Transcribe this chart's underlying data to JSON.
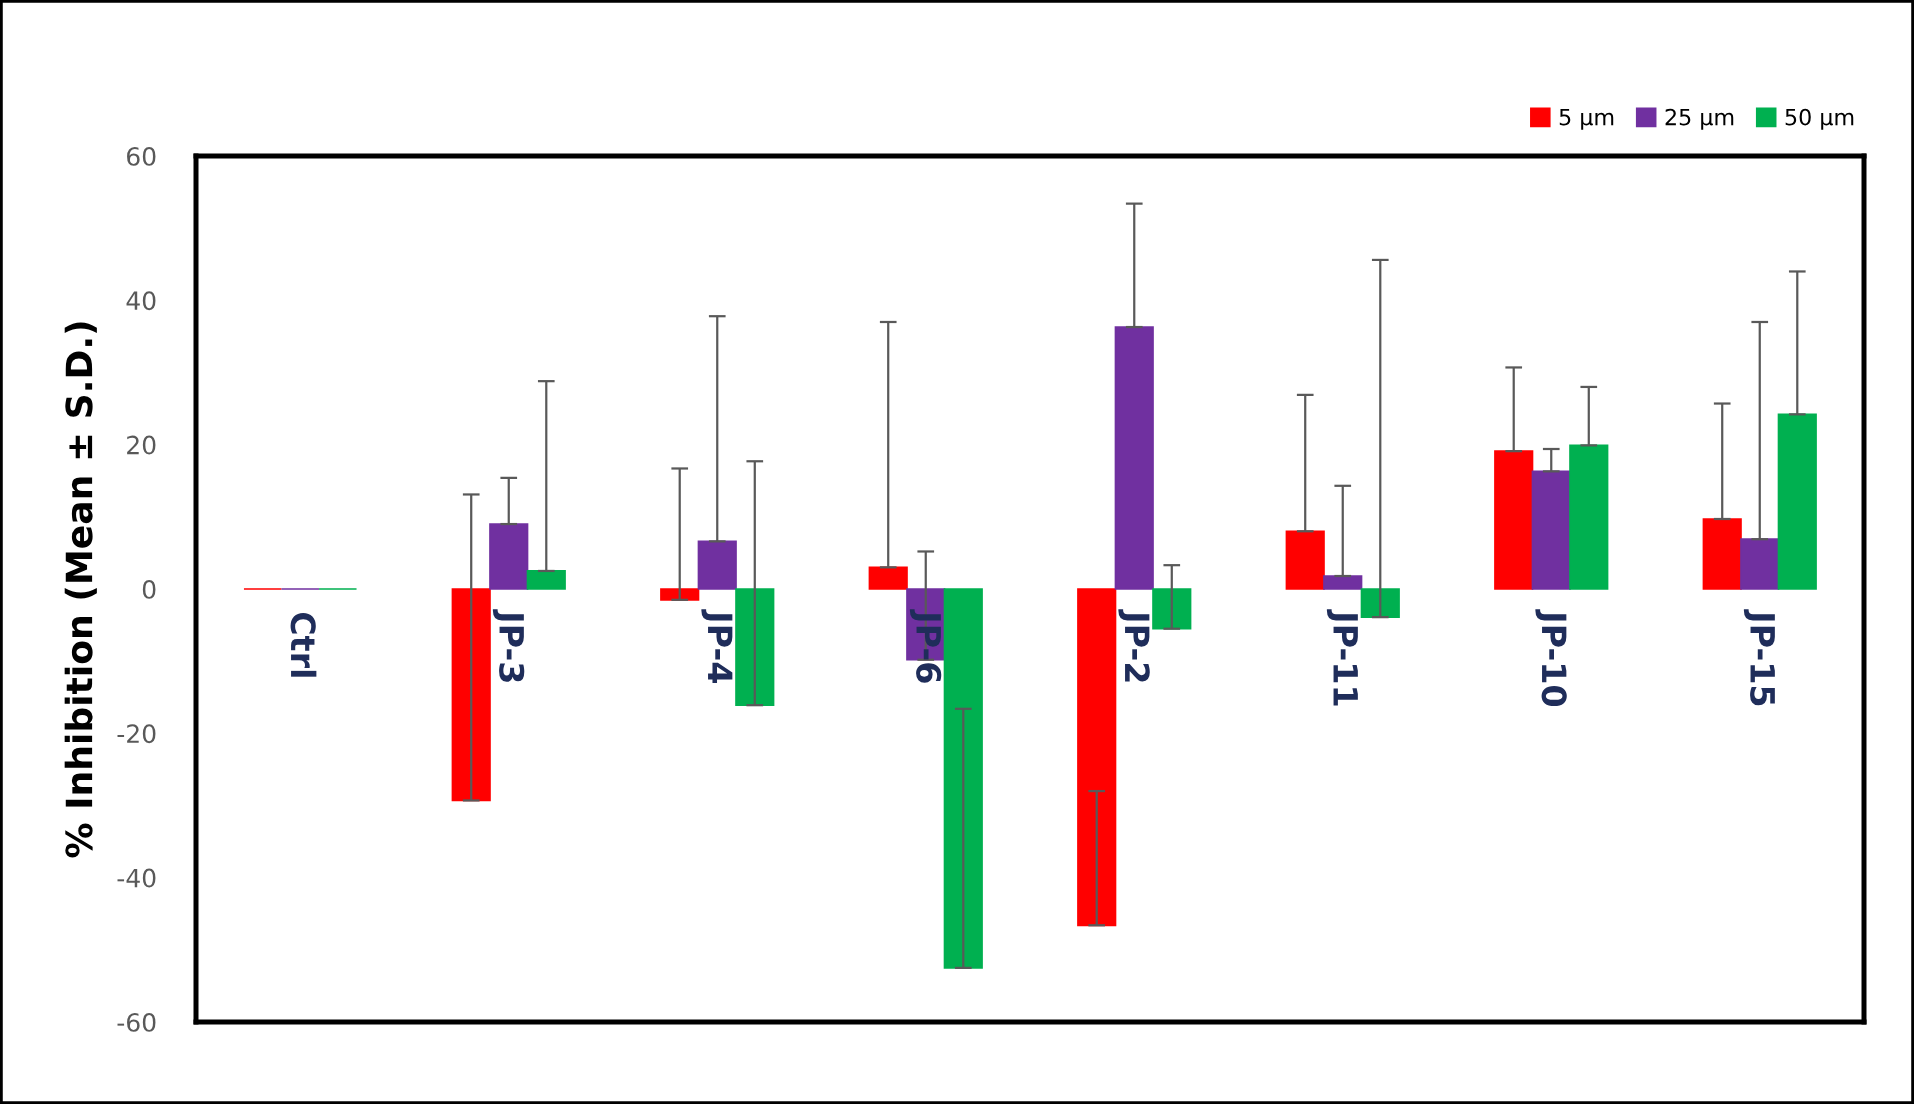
{
  "chart_data": {
    "type": "bar",
    "ylabel": "% Inhibition (Mean ± S.D.)",
    "categories": [
      "Ctrl",
      "JP-3",
      "JP-4",
      "JP-6",
      "JP-2",
      "JP-11",
      "JP-10",
      "JP-15"
    ],
    "series": [
      {
        "name": "5 µm",
        "color": "#ff0000",
        "values": [
          0,
          -29.3,
          -1.5,
          3.0,
          -46.6,
          8.0,
          19.1,
          9.7
        ],
        "errors": [
          null,
          [
            -29.3,
            13.1
          ],
          [
            -1.5,
            16.7
          ],
          [
            3.0,
            37.0
          ],
          [
            -46.6,
            -28.0
          ],
          [
            8.0,
            26.9
          ],
          [
            19.1,
            30.7
          ],
          [
            9.7,
            25.7
          ]
        ]
      },
      {
        "name": "25 µm",
        "color": "#7030a0",
        "values": [
          0,
          9.0,
          6.6,
          -9.8,
          36.3,
          1.8,
          16.3,
          6.9
        ],
        "errors": [
          null,
          [
            9.0,
            15.4
          ],
          [
            6.6,
            37.8
          ],
          [
            -9.8,
            5.2
          ],
          [
            36.3,
            53.4
          ],
          [
            1.8,
            14.3
          ],
          [
            16.3,
            19.4
          ],
          [
            6.9,
            37.0
          ]
        ]
      },
      {
        "name": "50 µm",
        "color": "#00b050",
        "values": [
          0,
          2.5,
          -16.1,
          -52.5,
          -5.5,
          -3.9,
          19.9,
          24.2
        ],
        "errors": [
          null,
          [
            2.5,
            28.8
          ],
          [
            -16.1,
            17.7
          ],
          [
            -52.5,
            -16.6
          ],
          [
            -5.5,
            3.3
          ],
          [
            -3.9,
            45.6
          ],
          [
            19.9,
            28.0
          ],
          [
            24.2,
            44.0
          ]
        ]
      }
    ],
    "ylim": [
      -60,
      60
    ],
    "yticks": [
      -60,
      -40,
      -20,
      0,
      20,
      40,
      60
    ],
    "grid": false,
    "legend": "top right"
  }
}
